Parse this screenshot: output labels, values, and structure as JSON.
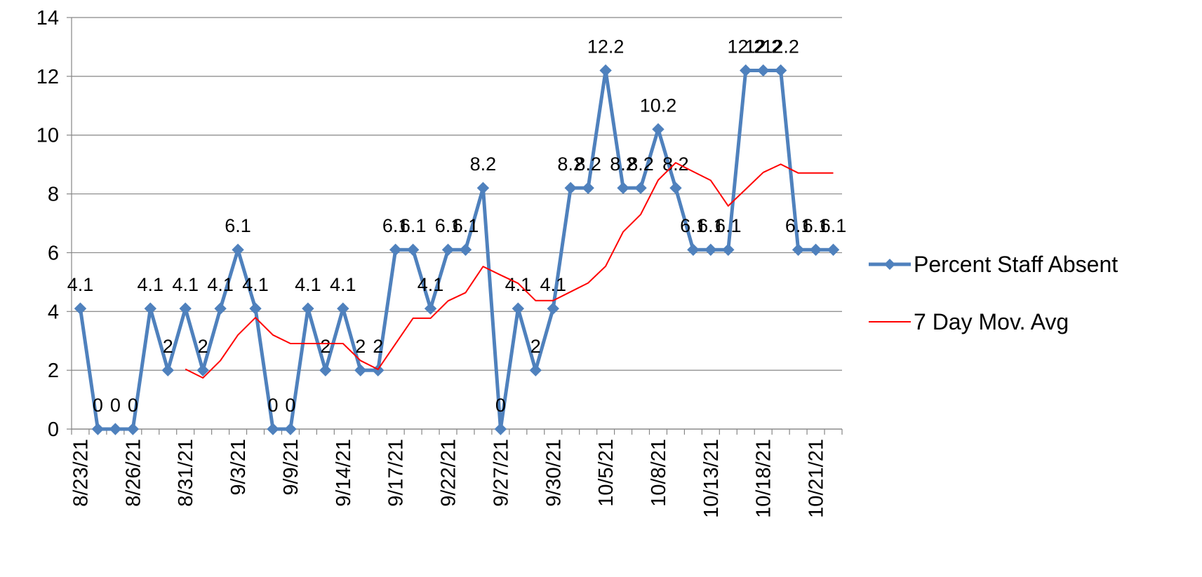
{
  "chart_data": {
    "type": "line",
    "categories": [
      "8/23/21",
      null,
      null,
      "8/26/21",
      null,
      null,
      "8/31/21",
      null,
      null,
      "9/3/21",
      null,
      null,
      "9/9/21",
      null,
      null,
      "9/14/21",
      null,
      null,
      "9/17/21",
      null,
      null,
      "9/22/21",
      null,
      null,
      "9/27/21",
      null,
      null,
      "9/30/21",
      null,
      null,
      "10/5/21",
      null,
      null,
      "10/8/21",
      null,
      null,
      "10/13/21",
      null,
      null,
      "10/18/21",
      null,
      null,
      "10/21/21",
      null
    ],
    "series": [
      {
        "name": "Percent Staff Absent",
        "color": "#4f81bd",
        "marker": "diamond",
        "data_labels": true,
        "values": [
          4.1,
          0,
          0,
          0,
          4.1,
          2,
          4.1,
          2,
          4.1,
          6.1,
          4.1,
          0,
          0,
          4.1,
          2,
          4.1,
          2,
          2,
          6.1,
          6.1,
          4.1,
          6.1,
          6.1,
          8.2,
          0,
          4.1,
          2,
          4.1,
          8.2,
          8.2,
          12.2,
          8.2,
          8.2,
          10.2,
          8.2,
          6.1,
          6.1,
          6.1,
          12.2,
          12.2,
          12.2,
          6.1,
          6.1,
          6.1
        ]
      },
      {
        "name": "7 Day Mov. Avg",
        "color": "#ff0000",
        "marker": "none",
        "data_labels": false,
        "values": [
          null,
          null,
          null,
          null,
          null,
          null,
          2.04,
          1.74,
          2.33,
          3.2,
          3.79,
          3.2,
          2.91,
          2.91,
          2.91,
          2.91,
          2.33,
          2.03,
          2.9,
          3.77,
          3.77,
          4.36,
          4.64,
          5.53,
          5.24,
          4.96,
          4.37,
          4.37,
          4.67,
          4.97,
          5.54,
          6.71,
          7.3,
          8.47,
          9.06,
          8.76,
          8.46,
          7.59,
          8.16,
          8.73,
          9.01,
          8.71,
          8.71,
          8.71
        ]
      }
    ],
    "ylim": [
      0,
      14
    ],
    "yticks": [
      0,
      2,
      4,
      6,
      8,
      10,
      12,
      14
    ],
    "grid": true,
    "legend": "right"
  }
}
